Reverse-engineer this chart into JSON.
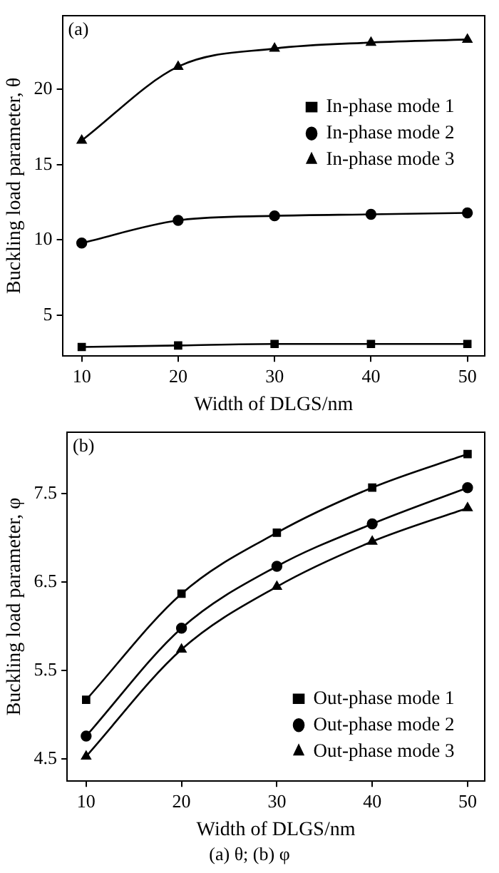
{
  "chart_data": [
    {
      "type": "line",
      "title": "(a)",
      "xlabel": "Width of DLGS/nm",
      "ylabel": "Buckling load parameter, θ",
      "x": [
        10,
        20,
        30,
        40,
        50
      ],
      "xlim": [
        8,
        51.8
      ],
      "xticks": [
        10,
        20,
        30,
        40,
        50
      ],
      "ylim": [
        2.3,
        24.9
      ],
      "yticks": [
        5,
        10,
        15,
        20
      ],
      "grid": false,
      "legend": "right",
      "series": [
        {
          "name": "In-phase mode 1",
          "color": "#000000",
          "marker": "square",
          "values": [
            2.9,
            3.0,
            3.1,
            3.1,
            3.1
          ]
        },
        {
          "name": "In-phase mode 2",
          "color": "#000000",
          "marker": "circle",
          "values": [
            9.8,
            11.3,
            11.6,
            11.7,
            11.8
          ]
        },
        {
          "name": "In-phase mode 3",
          "color": "#000000",
          "marker": "triangle",
          "values": [
            16.6,
            21.5,
            22.7,
            23.1,
            23.3
          ]
        }
      ]
    },
    {
      "type": "line",
      "title": "(b)",
      "xlabel": "Width of DLGS/nm",
      "ylabel": "Buckling load parameter, φ",
      "x": [
        10,
        20,
        30,
        40,
        50
      ],
      "xlim": [
        8,
        51.8
      ],
      "xticks": [
        10,
        20,
        30,
        40,
        50
      ],
      "ylim": [
        4.25,
        8.2
      ],
      "yticks": [
        4.5,
        5.5,
        6.5,
        7.5
      ],
      "grid": false,
      "legend": "bottom right",
      "annotations": [
        "(a)  θ; (b) φ"
      ],
      "series": [
        {
          "name": "Out-phase mode 1",
          "color": "#000000",
          "marker": "square",
          "values": [
            5.17,
            6.37,
            7.06,
            7.57,
            7.95
          ]
        },
        {
          "name": "Out-phase mode 2",
          "color": "#000000",
          "marker": "circle",
          "values": [
            4.76,
            5.98,
            6.68,
            7.16,
            7.57
          ]
        },
        {
          "name": "Out-phase mode 3",
          "color": "#000000",
          "marker": "triangle",
          "values": [
            4.53,
            5.74,
            6.45,
            6.96,
            7.34
          ]
        }
      ]
    }
  ]
}
